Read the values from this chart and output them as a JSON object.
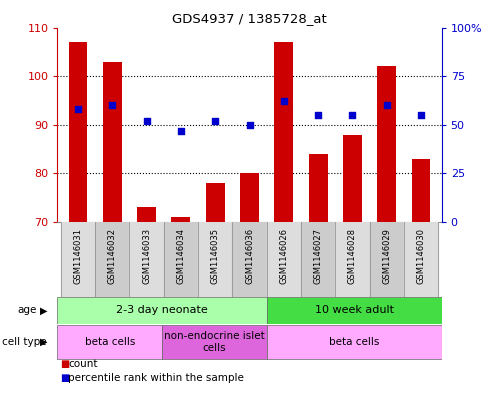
{
  "title": "GDS4937 / 1385728_at",
  "samples": [
    "GSM1146031",
    "GSM1146032",
    "GSM1146033",
    "GSM1146034",
    "GSM1146035",
    "GSM1146036",
    "GSM1146026",
    "GSM1146027",
    "GSM1146028",
    "GSM1146029",
    "GSM1146030"
  ],
  "bar_values": [
    107,
    103,
    73,
    71,
    78,
    80,
    107,
    84,
    88,
    102,
    83
  ],
  "percentile_values": [
    58,
    60,
    52,
    47,
    52,
    50,
    62,
    55,
    55,
    60,
    55
  ],
  "ylim_left": [
    70,
    110
  ],
  "ylim_right": [
    0,
    100
  ],
  "yticks_left": [
    70,
    80,
    90,
    100,
    110
  ],
  "yticks_right": [
    0,
    25,
    50,
    75,
    100
  ],
  "ytick_labels_right": [
    "0",
    "25",
    "50",
    "75",
    "100%"
  ],
  "bar_color": "#CC0000",
  "percentile_color": "#0000CC",
  "age_groups": [
    {
      "label": "2-3 day neonate",
      "start": 0,
      "end": 6,
      "color": "#AAFFAA"
    },
    {
      "label": "10 week adult",
      "start": 6,
      "end": 11,
      "color": "#44DD44"
    }
  ],
  "cell_type_groups": [
    {
      "label": "beta cells",
      "start": 0,
      "end": 3,
      "color": "#FFAAFF"
    },
    {
      "label": "non-endocrine islet\ncells",
      "start": 3,
      "end": 6,
      "color": "#DD66DD"
    },
    {
      "label": "beta cells",
      "start": 6,
      "end": 11,
      "color": "#FFAAFF"
    }
  ],
  "legend_items": [
    {
      "label": "count",
      "color": "#CC0000"
    },
    {
      "label": "percentile rank within the sample",
      "color": "#0000CC"
    }
  ],
  "background_color": "#FFFFFF",
  "grid_color": "#000000",
  "tick_color_left": "#CC0000",
  "tick_color_right": "#0000CC",
  "sample_bg_even": "#DDDDDD",
  "sample_bg_odd": "#CCCCCC"
}
